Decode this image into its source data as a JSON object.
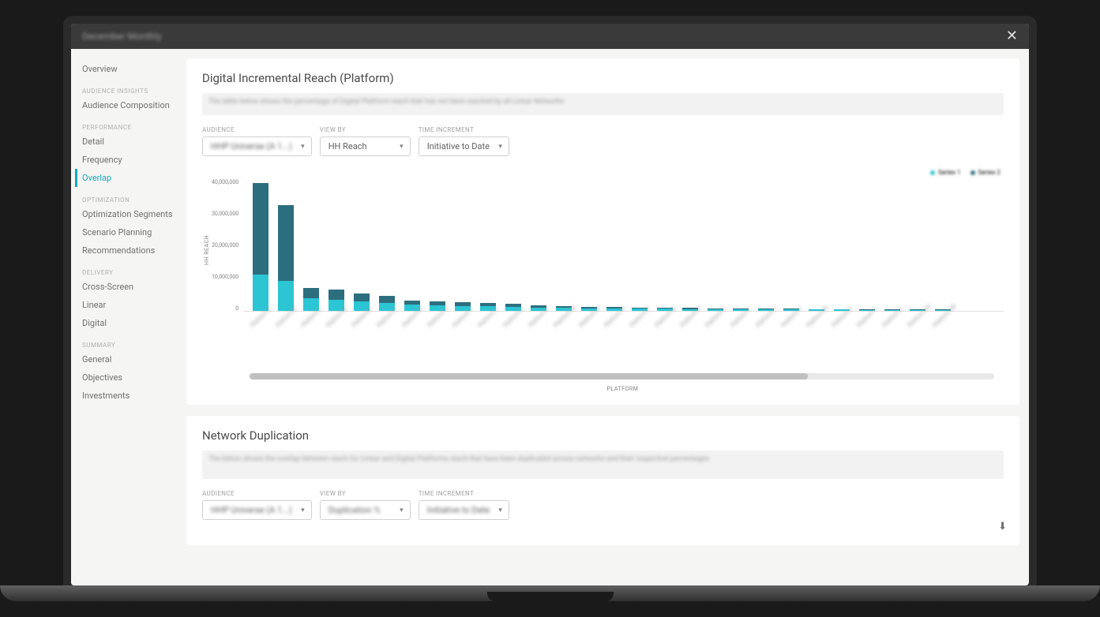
{
  "titlebar": {
    "title": "December Monthly"
  },
  "sidebar": {
    "overview": "Overview",
    "sections": [
      {
        "header": "AUDIENCE INSIGHTS",
        "items": [
          "Audience Composition"
        ]
      },
      {
        "header": "PERFORMANCE",
        "items": [
          "Detail",
          "Frequency",
          "Overlap"
        ],
        "active": "Overlap"
      },
      {
        "header": "OPTIMIZATION",
        "items": [
          "Optimization Segments",
          "Scenario Planning",
          "Recommendations"
        ]
      },
      {
        "header": "DELIVERY",
        "items": [
          "Cross-Screen",
          "Linear",
          "Digital"
        ]
      },
      {
        "header": "SUMMARY",
        "items": [
          "General",
          "Objectives",
          "Investments"
        ]
      }
    ]
  },
  "panel1": {
    "title": "Digital Incremental Reach (Platform)",
    "desc_blur": "The table below shows the percentage of Digital Platform reach that has not been reached by all Linear Networks",
    "filters": {
      "audience_label": "AUDIENCE",
      "audience_value": "HHP Universe (A 1...)",
      "audience_blurred": true,
      "viewby_label": "VIEW BY",
      "viewby_value": "HH Reach",
      "time_label": "TIME INCREMENT",
      "time_value": "Initiative to Date"
    },
    "chart": {
      "type": "stacked-bar",
      "y_axis_label": "HH REACH",
      "x_axis_label": "PLATFORM",
      "y_ticks": [
        "40,000,000",
        "30,000,000",
        "20,000,000",
        "10,000,000",
        "0"
      ],
      "ylim": [
        0,
        40000000
      ],
      "colors": {
        "bottom": "#2bc5d4",
        "top": "#2d6e7e",
        "grid": "#e0e0e0",
        "bg": "#ffffff"
      },
      "legend": [
        {
          "label": "Series 1",
          "color": "#2bc5d4"
        },
        {
          "label": "Series 2",
          "color": "#2d6e7e"
        }
      ],
      "bars": [
        {
          "bottom": 11000000,
          "top": 27500000,
          "label": "Platform A"
        },
        {
          "bottom": 9000000,
          "top": 23000000,
          "label": "Platform B"
        },
        {
          "bottom": 3800000,
          "top": 3200000,
          "label": "Platform C"
        },
        {
          "bottom": 3400000,
          "top": 3000000,
          "label": "Platform D"
        },
        {
          "bottom": 2800000,
          "top": 2400000,
          "label": "Platform E"
        },
        {
          "bottom": 2500000,
          "top": 2000000,
          "label": "Platform F"
        },
        {
          "bottom": 1800000,
          "top": 1400000,
          "label": "Platform G"
        },
        {
          "bottom": 1600000,
          "top": 1200000,
          "label": "Platform H"
        },
        {
          "bottom": 1500000,
          "top": 1100000,
          "label": "Platform I"
        },
        {
          "bottom": 1400000,
          "top": 1000000,
          "label": "Platform J"
        },
        {
          "bottom": 1200000,
          "top": 900000,
          "label": "Platform K"
        },
        {
          "bottom": 1000000,
          "top": 700000,
          "label": "Platform L"
        },
        {
          "bottom": 900000,
          "top": 600000,
          "label": "Platform M"
        },
        {
          "bottom": 800000,
          "top": 500000,
          "label": "Platform N"
        },
        {
          "bottom": 700000,
          "top": 450000,
          "label": "Platform O"
        },
        {
          "bottom": 650000,
          "top": 400000,
          "label": "Platform P"
        },
        {
          "bottom": 600000,
          "top": 350000,
          "label": "Platform Q"
        },
        {
          "bottom": 550000,
          "top": 300000,
          "label": "Platform R"
        },
        {
          "bottom": 500000,
          "top": 280000,
          "label": "Platform S"
        },
        {
          "bottom": 480000,
          "top": 260000,
          "label": "Platform T"
        },
        {
          "bottom": 450000,
          "top": 240000,
          "label": "Platform U"
        },
        {
          "bottom": 420000,
          "top": 220000,
          "label": "Platform V"
        },
        {
          "bottom": 400000,
          "top": 200000,
          "label": "Platform W"
        },
        {
          "bottom": 380000,
          "top": 180000,
          "label": "Platform X"
        },
        {
          "bottom": 360000,
          "top": 160000,
          "label": "Platform Y"
        },
        {
          "bottom": 340000,
          "top": 150000,
          "label": "Platform Z"
        },
        {
          "bottom": 320000,
          "top": 140000,
          "label": "Platform AA"
        },
        {
          "bottom": 300000,
          "top": 130000,
          "label": "Platform AB"
        }
      ]
    }
  },
  "panel2": {
    "title": "Network Duplication",
    "desc_blur": "The below shows the overlap between reach for Linear and Digital Platforms reach that have been duplicated across networks and their respective percentages",
    "filters": {
      "audience_label": "AUDIENCE",
      "audience_value": "HHP Universe (A 1...)",
      "audience_blurred": true,
      "viewby_label": "VIEW BY",
      "viewby_value": "Duplication %",
      "viewby_blurred": true,
      "time_label": "TIME INCREMENT",
      "time_value": "Initiative to Date",
      "time_blurred": true
    }
  }
}
